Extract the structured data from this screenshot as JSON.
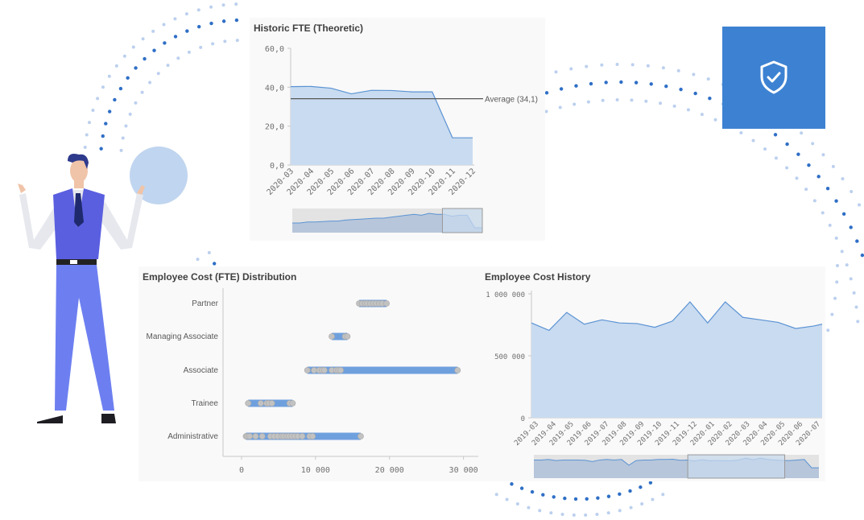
{
  "colors": {
    "area_fill": "#c9dbf0",
    "area_line": "#5b93d4",
    "bar_fill": "#6fa0de",
    "dot_fill": "#c2c2c2",
    "badge_bg": "#3d82d2",
    "dot_dark": "#2f6fc6",
    "dot_light": "#bcd0ee"
  },
  "badge": {
    "icon": "shield-check-icon"
  },
  "illustration": {
    "name": "businessman-illustration"
  },
  "chart_data": [
    {
      "type": "area",
      "title": "Historic FTE (Theoretic)",
      "categories": [
        "2020-03",
        "2020-04",
        "2020-05",
        "2020-06",
        "2020-07",
        "2020-08",
        "2020-09",
        "2020-10",
        "2020-11",
        "2020-12"
      ],
      "values": [
        40.3,
        40.4,
        39.5,
        36.6,
        38.4,
        38.3,
        37.6,
        37.6,
        14.0,
        14.0
      ],
      "ylim": [
        0,
        60
      ],
      "yticks": [
        0,
        20,
        40,
        60
      ],
      "ytick_labels": [
        "0,0",
        "20,0",
        "40,0",
        "60,0"
      ],
      "reference_line": {
        "value": 34.1,
        "label": "Average (34,1)"
      },
      "mini_chart": {
        "values": [
          10,
          10,
          11,
          11,
          11.5,
          12,
          12,
          13,
          13.5,
          14,
          14.5,
          15,
          15,
          16,
          17,
          18,
          19,
          18,
          20,
          19,
          19,
          17,
          18,
          18,
          5,
          5
        ],
        "selected_range": [
          0.79,
          1.0
        ]
      },
      "xlabel": "",
      "ylabel": ""
    },
    {
      "type": "scatter",
      "title": "Employee Cost (FTE) Distribution",
      "categories": [
        "Partner",
        "Managing Associate",
        "Associate",
        "Trainee",
        "Administrative"
      ],
      "ranges": [
        [
          15900,
          19600
        ],
        [
          12200,
          14300
        ],
        [
          8900,
          29200
        ],
        [
          900,
          6900
        ],
        [
          600,
          16100
        ]
      ],
      "points": [
        [
          15900,
          16300,
          16700,
          17000,
          17400,
          17800,
          18200,
          18600,
          19000,
          19600
        ],
        [
          12200,
          14000,
          14300
        ],
        [
          8900,
          9800,
          10500,
          10900,
          11200,
          12200,
          12800,
          13100,
          13400,
          29200
        ],
        [
          900,
          2600,
          3400,
          3700,
          4100,
          6500,
          6900
        ],
        [
          600,
          800,
          1100,
          1900,
          2800,
          3900,
          4400,
          4900,
          5400,
          5700,
          6100,
          6400,
          6800,
          7200,
          7600,
          8200,
          9200,
          9600,
          16100
        ]
      ],
      "xlim": [
        -2500,
        32000
      ],
      "xticks": [
        0,
        10000,
        20000,
        30000
      ],
      "xtick_labels": [
        "0",
        "10 000",
        "20 000",
        "30 000"
      ],
      "xlabel": "",
      "ylabel": ""
    },
    {
      "type": "area",
      "title": "Employee Cost History",
      "categories": [
        "2019-03",
        "2019-04",
        "2019-05",
        "2019-06",
        "2019-07",
        "2019-08",
        "2019-09",
        "2019-10",
        "2019-11",
        "2019-12",
        "2020-01",
        "2020-02",
        "2020-03",
        "2020-04",
        "2020-05",
        "2020-06",
        "2020-07"
      ],
      "values": [
        765000,
        705000,
        850000,
        755000,
        790000,
        765000,
        760000,
        730000,
        780000,
        935000,
        765000,
        935000,
        810000,
        790000,
        770000,
        720000,
        740000
      ],
      "values_extra_end": 755000,
      "ylim": [
        0,
        1000000
      ],
      "yticks": [
        0,
        500000,
        1000000
      ],
      "ytick_labels": [
        "0",
        "500 000",
        "1 000 000"
      ],
      "mini_chart": {
        "values": [
          70,
          70,
          72,
          68,
          70,
          70,
          70,
          69,
          64,
          70,
          72,
          70,
          72,
          50,
          68,
          70,
          70,
          72,
          72,
          73,
          69,
          70,
          66,
          71,
          67,
          68,
          67,
          67,
          70,
          77,
          71,
          77,
          72,
          70,
          68,
          68,
          70,
          72,
          40,
          40
        ],
        "selected_range": [
          0.54,
          0.88
        ]
      },
      "xlabel": "",
      "ylabel": ""
    }
  ]
}
